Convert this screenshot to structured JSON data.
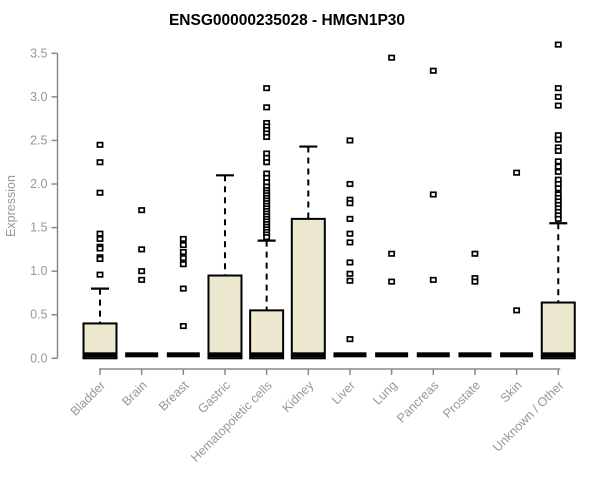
{
  "chart_data": {
    "type": "boxplot",
    "title": "ENSG00000235028 - HMGN1P30",
    "ylabel": "Expression",
    "xlabel": "",
    "ylim": [
      0,
      3.5
    ],
    "yticks": [
      "0.0",
      "0.5",
      "1.0",
      "1.5",
      "2.0",
      "2.5",
      "3.0",
      "3.5"
    ],
    "grid": false,
    "legend": "none",
    "colors": {
      "box_fill": "#EDE8D0",
      "box_stroke": "#000000",
      "whisker": "#000000",
      "outlier_stroke": "#000000",
      "axis_line": "#8a8a8a",
      "axis_text": "#979797",
      "title_text": "#000000"
    },
    "categories": [
      "Bladder",
      "Brain",
      "Breast",
      "Gastric",
      "Hematopoietic cells",
      "Kidney",
      "Liver",
      "Lung",
      "Pancreas",
      "Prostate",
      "Skin",
      "Unknown / Other"
    ],
    "boxes": [
      {
        "category": "Bladder",
        "q1": 0,
        "median": 0.04,
        "q3": 0.4,
        "whisker_low": 0,
        "whisker_high": 0.8,
        "outliers": [
          2.45,
          2.25,
          1.9,
          1.43,
          1.37,
          1.28,
          1.26,
          1.16,
          1.14,
          0.96
        ]
      },
      {
        "category": "Brain",
        "q1": 0,
        "median": 0.04,
        "q3": 0.04,
        "whisker_low": 0,
        "whisker_high": 0.04,
        "outliers": [
          1.7,
          1.25,
          1.0,
          0.9
        ]
      },
      {
        "category": "Breast",
        "q1": 0,
        "median": 0.04,
        "q3": 0.04,
        "whisker_low": 0,
        "whisker_high": 0.04,
        "outliers": [
          1.37,
          1.3,
          1.22,
          1.15,
          1.08,
          0.8,
          0.37
        ]
      },
      {
        "category": "Gastric",
        "q1": 0,
        "median": 0.04,
        "q3": 0.95,
        "whisker_low": 0,
        "whisker_high": 2.1,
        "outliers": []
      },
      {
        "category": "Hematopoietic cells",
        "q1": 0,
        "median": 0.04,
        "q3": 0.55,
        "whisker_low": 0,
        "whisker_high": 1.35,
        "outliers": [
          3.1,
          2.88,
          2.7,
          2.66,
          2.62,
          2.58,
          2.54,
          2.35,
          2.3,
          2.25,
          2.12,
          2.07,
          2.02,
          1.97,
          1.93,
          1.9,
          1.87,
          1.84,
          1.81,
          1.78,
          1.75,
          1.72,
          1.69,
          1.66,
          1.63,
          1.6,
          1.57,
          1.54,
          1.51,
          1.48,
          1.45,
          1.42,
          1.39
        ]
      },
      {
        "category": "Kidney",
        "q1": 0,
        "median": 0.04,
        "q3": 1.6,
        "whisker_low": 0,
        "whisker_high": 2.43,
        "outliers": []
      },
      {
        "category": "Liver",
        "q1": 0,
        "median": 0.04,
        "q3": 0.04,
        "whisker_low": 0,
        "whisker_high": 0.04,
        "outliers": [
          2.5,
          2.0,
          1.82,
          1.78,
          1.6,
          1.43,
          1.33,
          1.1,
          0.97,
          0.89,
          0.22
        ]
      },
      {
        "category": "Lung",
        "q1": 0,
        "median": 0.04,
        "q3": 0.04,
        "whisker_low": 0,
        "whisker_high": 0.04,
        "outliers": [
          3.45,
          1.2,
          0.88
        ]
      },
      {
        "category": "Pancreas",
        "q1": 0,
        "median": 0.04,
        "q3": 0.04,
        "whisker_low": 0,
        "whisker_high": 0.04,
        "outliers": [
          3.3,
          1.88,
          0.9
        ]
      },
      {
        "category": "Prostate",
        "q1": 0,
        "median": 0.04,
        "q3": 0.04,
        "whisker_low": 0,
        "whisker_high": 0.04,
        "outliers": [
          1.2,
          0.92,
          0.88
        ]
      },
      {
        "category": "Skin",
        "q1": 0,
        "median": 0.04,
        "q3": 0.04,
        "whisker_low": 0,
        "whisker_high": 0.04,
        "outliers": [
          2.13,
          0.55
        ]
      },
      {
        "category": "Unknown / Other",
        "q1": 0,
        "median": 0.04,
        "q3": 0.64,
        "whisker_low": 0,
        "whisker_high": 1.55,
        "outliers": [
          3.6,
          3.1,
          3.0,
          2.9,
          2.56,
          2.51,
          2.42,
          2.38,
          2.26,
          2.2,
          2.14,
          2.05,
          2.0,
          1.95,
          1.88,
          1.84,
          1.8,
          1.76,
          1.72,
          1.68,
          1.64,
          1.6
        ]
      }
    ]
  }
}
